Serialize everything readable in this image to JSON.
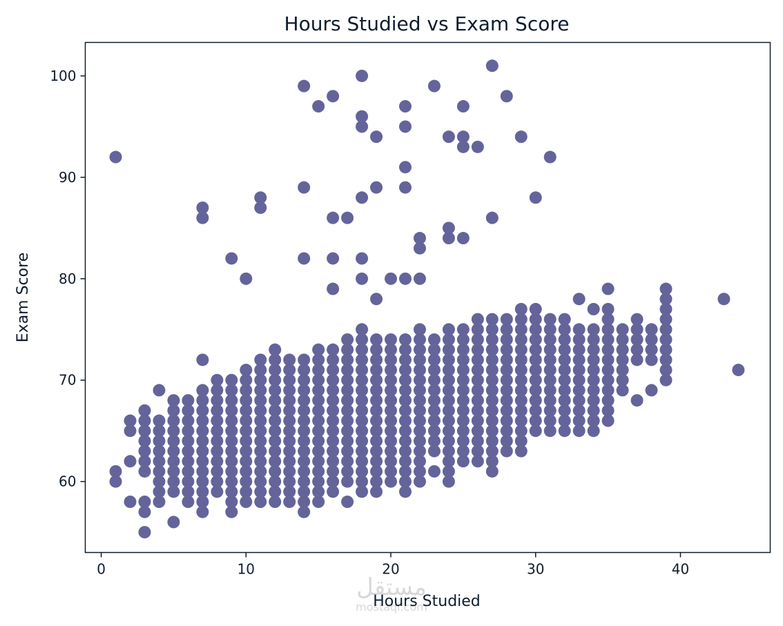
{
  "watermark": {
    "arabic": "مستقل",
    "latin": "mostaql.com"
  },
  "chart_data": {
    "type": "scatter",
    "title": "Hours Studied vs Exam Score",
    "xlabel": "Hours Studied",
    "ylabel": "Exam Score",
    "xlim": [
      -1.1,
      46.2
    ],
    "ylim": [
      53.0,
      103.3
    ],
    "x_ticks": [
      0,
      10,
      20,
      30,
      40
    ],
    "y_ticks": [
      60,
      70,
      80,
      90,
      100
    ],
    "grid": false,
    "legend": "none",
    "marker_color": "#64649b",
    "axis_color": "#0f1c2e",
    "outliers": [
      [
        1,
        92
      ],
      [
        7,
        87
      ],
      [
        7,
        86
      ],
      [
        9,
        82
      ],
      [
        10,
        80
      ],
      [
        11,
        88
      ],
      [
        11,
        87
      ],
      [
        14,
        99
      ],
      [
        14,
        89
      ],
      [
        14,
        82
      ],
      [
        15,
        97
      ],
      [
        16,
        98
      ],
      [
        16,
        86
      ],
      [
        16,
        82
      ],
      [
        16,
        79
      ],
      [
        17,
        86
      ],
      [
        18,
        100
      ],
      [
        18,
        96
      ],
      [
        18,
        95
      ],
      [
        18,
        88
      ],
      [
        18,
        82
      ],
      [
        18,
        80
      ],
      [
        19,
        94
      ],
      [
        19,
        89
      ],
      [
        19,
        78
      ],
      [
        20,
        80
      ],
      [
        21,
        97
      ],
      [
        21,
        95
      ],
      [
        21,
        91
      ],
      [
        21,
        89
      ],
      [
        21,
        80
      ],
      [
        22,
        84
      ],
      [
        22,
        83
      ],
      [
        22,
        80
      ],
      [
        23,
        99
      ],
      [
        24,
        94
      ],
      [
        24,
        85
      ],
      [
        24,
        84
      ],
      [
        25,
        97
      ],
      [
        25,
        94
      ],
      [
        25,
        93
      ],
      [
        25,
        84
      ],
      [
        26,
        93
      ],
      [
        27,
        101
      ],
      [
        27,
        86
      ],
      [
        28,
        98
      ],
      [
        29,
        94
      ],
      [
        30,
        88
      ],
      [
        31,
        92
      ],
      [
        33,
        78
      ],
      [
        34,
        77
      ],
      [
        35,
        79
      ],
      [
        39,
        79
      ],
      [
        43,
        78
      ],
      [
        44,
        71
      ]
    ],
    "columns": [
      [
        1,
        60,
        61
      ],
      [
        2,
        58,
        58
      ],
      [
        2,
        62,
        62
      ],
      [
        2,
        65,
        66
      ],
      [
        3,
        55,
        55
      ],
      [
        3,
        57,
        58
      ],
      [
        3,
        61,
        67
      ],
      [
        4,
        58,
        66
      ],
      [
        4,
        69,
        69
      ],
      [
        5,
        56,
        56
      ],
      [
        5,
        59,
        68
      ],
      [
        6,
        58,
        68
      ],
      [
        7,
        57,
        69
      ],
      [
        7,
        72,
        72
      ],
      [
        8,
        59,
        70
      ],
      [
        9,
        57,
        70
      ],
      [
        10,
        58,
        71
      ],
      [
        11,
        58,
        72
      ],
      [
        12,
        58,
        73
      ],
      [
        13,
        58,
        72
      ],
      [
        14,
        57,
        72
      ],
      [
        15,
        58,
        73
      ],
      [
        16,
        59,
        73
      ],
      [
        17,
        58,
        58
      ],
      [
        17,
        60,
        74
      ],
      [
        18,
        59,
        75
      ],
      [
        19,
        59,
        74
      ],
      [
        20,
        60,
        74
      ],
      [
        21,
        59,
        74
      ],
      [
        22,
        60,
        75
      ],
      [
        23,
        61,
        61
      ],
      [
        23,
        63,
        74
      ],
      [
        24,
        60,
        75
      ],
      [
        25,
        62,
        75
      ],
      [
        26,
        62,
        76
      ],
      [
        27,
        61,
        76
      ],
      [
        28,
        63,
        76
      ],
      [
        29,
        63,
        77
      ],
      [
        30,
        65,
        77
      ],
      [
        31,
        65,
        76
      ],
      [
        32,
        65,
        76
      ],
      [
        33,
        65,
        75
      ],
      [
        34,
        65,
        75
      ],
      [
        35,
        66,
        77
      ],
      [
        36,
        69,
        75
      ],
      [
        37,
        68,
        68
      ],
      [
        37,
        72,
        76
      ],
      [
        38,
        69,
        69
      ],
      [
        38,
        72,
        75
      ],
      [
        39,
        70,
        78
      ]
    ]
  }
}
